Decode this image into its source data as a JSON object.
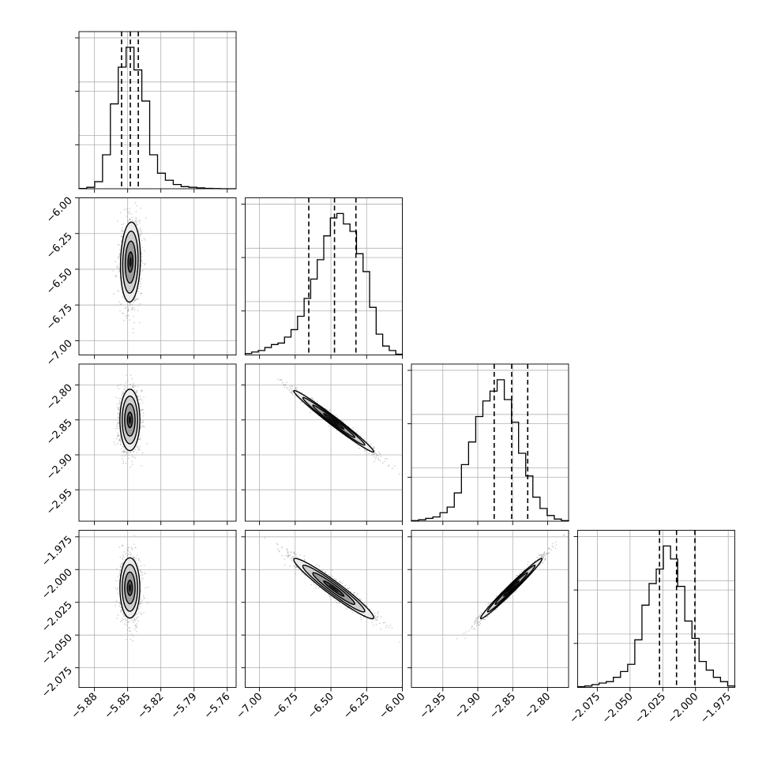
{
  "chart_data": {
    "type": "corner",
    "grid": true,
    "style": {
      "line": "#000000",
      "grid": "#b0b0b0",
      "points": "#9a9a9a"
    },
    "parameters": [
      {
        "ticks": [
          -5.88,
          -5.85,
          -5.82,
          -5.79,
          -5.76
        ],
        "tick_labels": [
          "−5.88",
          "−5.85",
          "−5.82",
          "−5.79",
          "−5.76"
        ],
        "range": [
          -5.894,
          -5.752
        ],
        "quantiles": [
          -5.8555,
          -5.8476,
          -5.8404
        ]
      },
      {
        "ticks": [
          -7.0,
          -6.75,
          -6.5,
          -6.25,
          -6.0
        ],
        "tick_labels": [
          "−7.00",
          "−6.75",
          "−6.50",
          "−6.25",
          "−6.00"
        ],
        "range": [
          -7.1,
          -6.0
        ],
        "quantiles": [
          -6.655,
          -6.475,
          -6.325
        ]
      },
      {
        "ticks": [
          -2.95,
          -2.9,
          -2.85,
          -2.8
        ],
        "tick_labels": [
          "−2.95",
          "−2.90",
          "−2.85",
          "−2.80"
        ],
        "range": [
          -2.995,
          -2.77
        ],
        "quantiles": [
          -2.8765,
          -2.8515,
          -2.8285
        ]
      },
      {
        "ticks": [
          -2.075,
          -2.05,
          -2.025,
          -2.0,
          -1.975
        ],
        "tick_labels": [
          "−2.075",
          "−2.050",
          "−2.025",
          "−2.000",
          "−1.975"
        ],
        "range": [
          -2.09,
          -1.97
        ],
        "quantiles": [
          -2.0275,
          -2.0145,
          -2.0005
        ]
      }
    ],
    "histograms": [
      {
        "counts": [
          0.2,
          1,
          5,
          24,
          60,
          86,
          100,
          84,
          62,
          24,
          11,
          6,
          3,
          1.5,
          1,
          0.6,
          0.3,
          0.1,
          0,
          0
        ]
      },
      {
        "counts": [
          1,
          2,
          3,
          5,
          7,
          8,
          12,
          17,
          26,
          38,
          51,
          64,
          80,
          92,
          95,
          88,
          83,
          68,
          56,
          32,
          14,
          6,
          3,
          0.5
        ]
      },
      {
        "counts": [
          0.4,
          1,
          2,
          3,
          6,
          10,
          20,
          40,
          56,
          74,
          85,
          92,
          100,
          86,
          70,
          48,
          32,
          17,
          9,
          4,
          1.5,
          0.4
        ]
      },
      {
        "counts": [
          0.5,
          1,
          2,
          3,
          4,
          7,
          11,
          16,
          33,
          57,
          72,
          82,
          98,
          89,
          70,
          46,
          34,
          18,
          12,
          7,
          4,
          1
        ]
      }
    ],
    "panels": [
      {
        "x": 0,
        "y": 1,
        "center": [
          -5.8475,
          -6.45
        ],
        "widths": [
          0.0045,
          0.14
        ],
        "rho": 0.1
      },
      {
        "x": 0,
        "y": 2,
        "center": [
          -5.848,
          -2.85
        ],
        "widths": [
          0.0045,
          0.022
        ],
        "rho": 0.0
      },
      {
        "x": 1,
        "y": 2,
        "center": [
          -6.48,
          -2.852
        ],
        "widths": [
          0.14,
          0.022
        ],
        "rho": -0.985
      },
      {
        "x": 0,
        "y": 3,
        "center": [
          -5.848,
          -2.014
        ],
        "widths": [
          0.0045,
          0.0115
        ],
        "rho": 0.0
      },
      {
        "x": 1,
        "y": 3,
        "center": [
          -6.48,
          -2.0145
        ],
        "widths": [
          0.14,
          0.0115
        ],
        "rho": -0.96
      },
      {
        "x": 2,
        "y": 3,
        "center": [
          -2.852,
          -2.0145
        ],
        "widths": [
          0.022,
          0.0115
        ],
        "rho": 0.985
      }
    ]
  }
}
